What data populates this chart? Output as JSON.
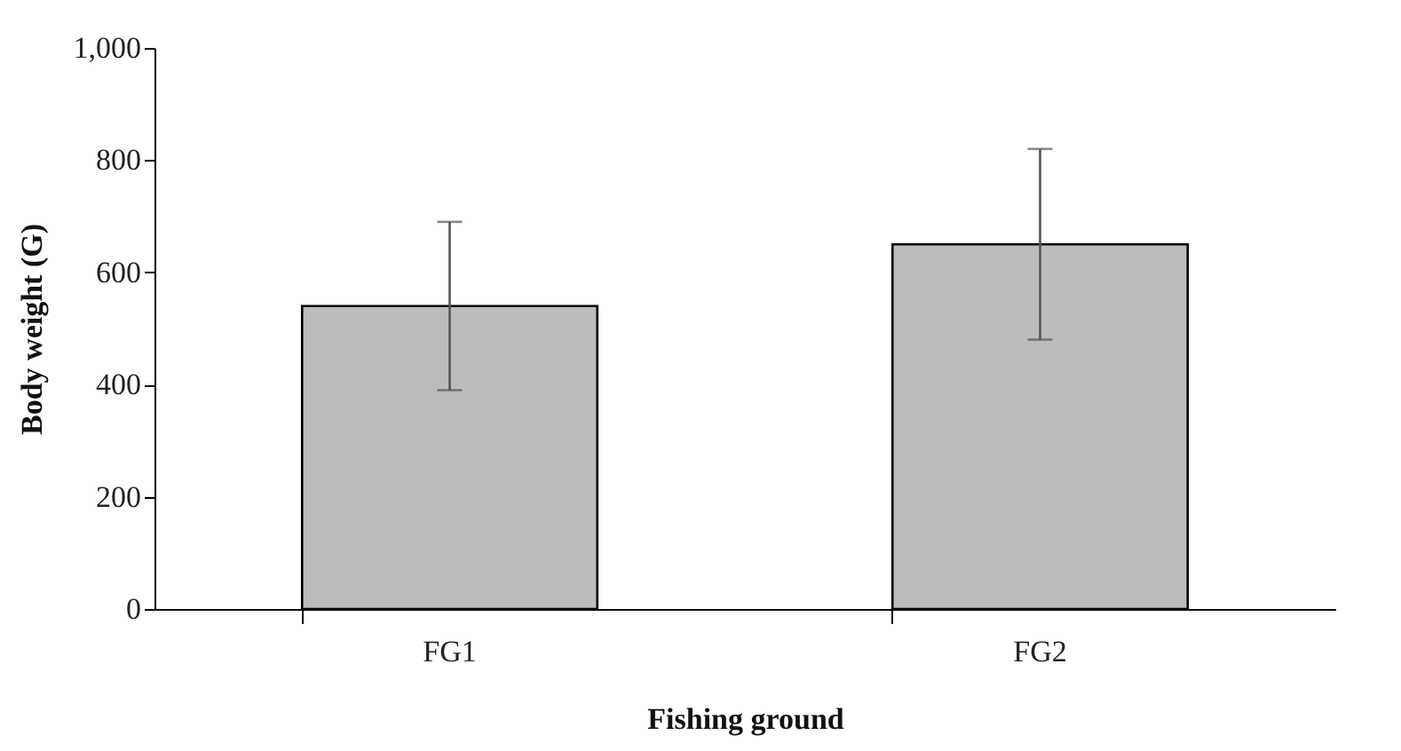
{
  "chart_data": {
    "type": "bar",
    "xlabel": "Fishing ground",
    "ylabel": "Body weight (G)",
    "categories": [
      "FG1",
      "FG2"
    ],
    "values": [
      540,
      650
    ],
    "errors": [
      150,
      170
    ],
    "color": "#bcbcbe",
    "ylim": [
      0,
      1000
    ],
    "yticks": [
      0,
      200,
      400,
      600,
      800,
      {
        "value": 1000,
        "label": "1,000"
      }
    ],
    "grid": false
  }
}
